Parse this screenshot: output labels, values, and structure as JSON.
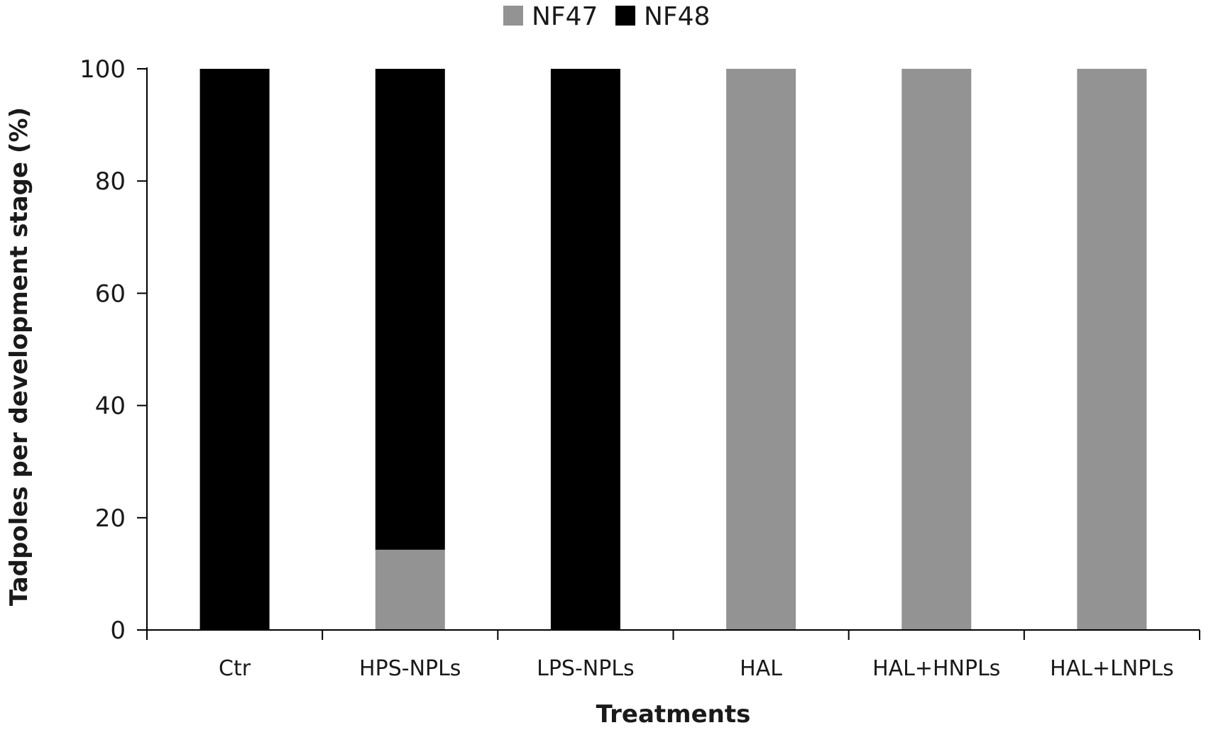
{
  "chart_data": {
    "type": "bar",
    "stacked": true,
    "title": "",
    "xlabel": "Treatments",
    "ylabel": "Tadpoles per  development stage (%)",
    "ylim": [
      0,
      100
    ],
    "yticks": [
      "0",
      "20",
      "40",
      "60",
      "80",
      "100"
    ],
    "categories": [
      "Ctr",
      "HPS-NPLs",
      "LPS-NPLs",
      "HAL",
      "HAL+HNPLs",
      "HAL+LNPLs"
    ],
    "series": [
      {
        "name": "NF47",
        "color": "#939393",
        "values": [
          0,
          14.3,
          0,
          100,
          100,
          100
        ]
      },
      {
        "name": "NF48",
        "color": "#000000",
        "values": [
          100,
          85.7,
          100,
          0,
          0,
          0
        ]
      }
    ],
    "legend_position": "top-center",
    "grid": false
  }
}
